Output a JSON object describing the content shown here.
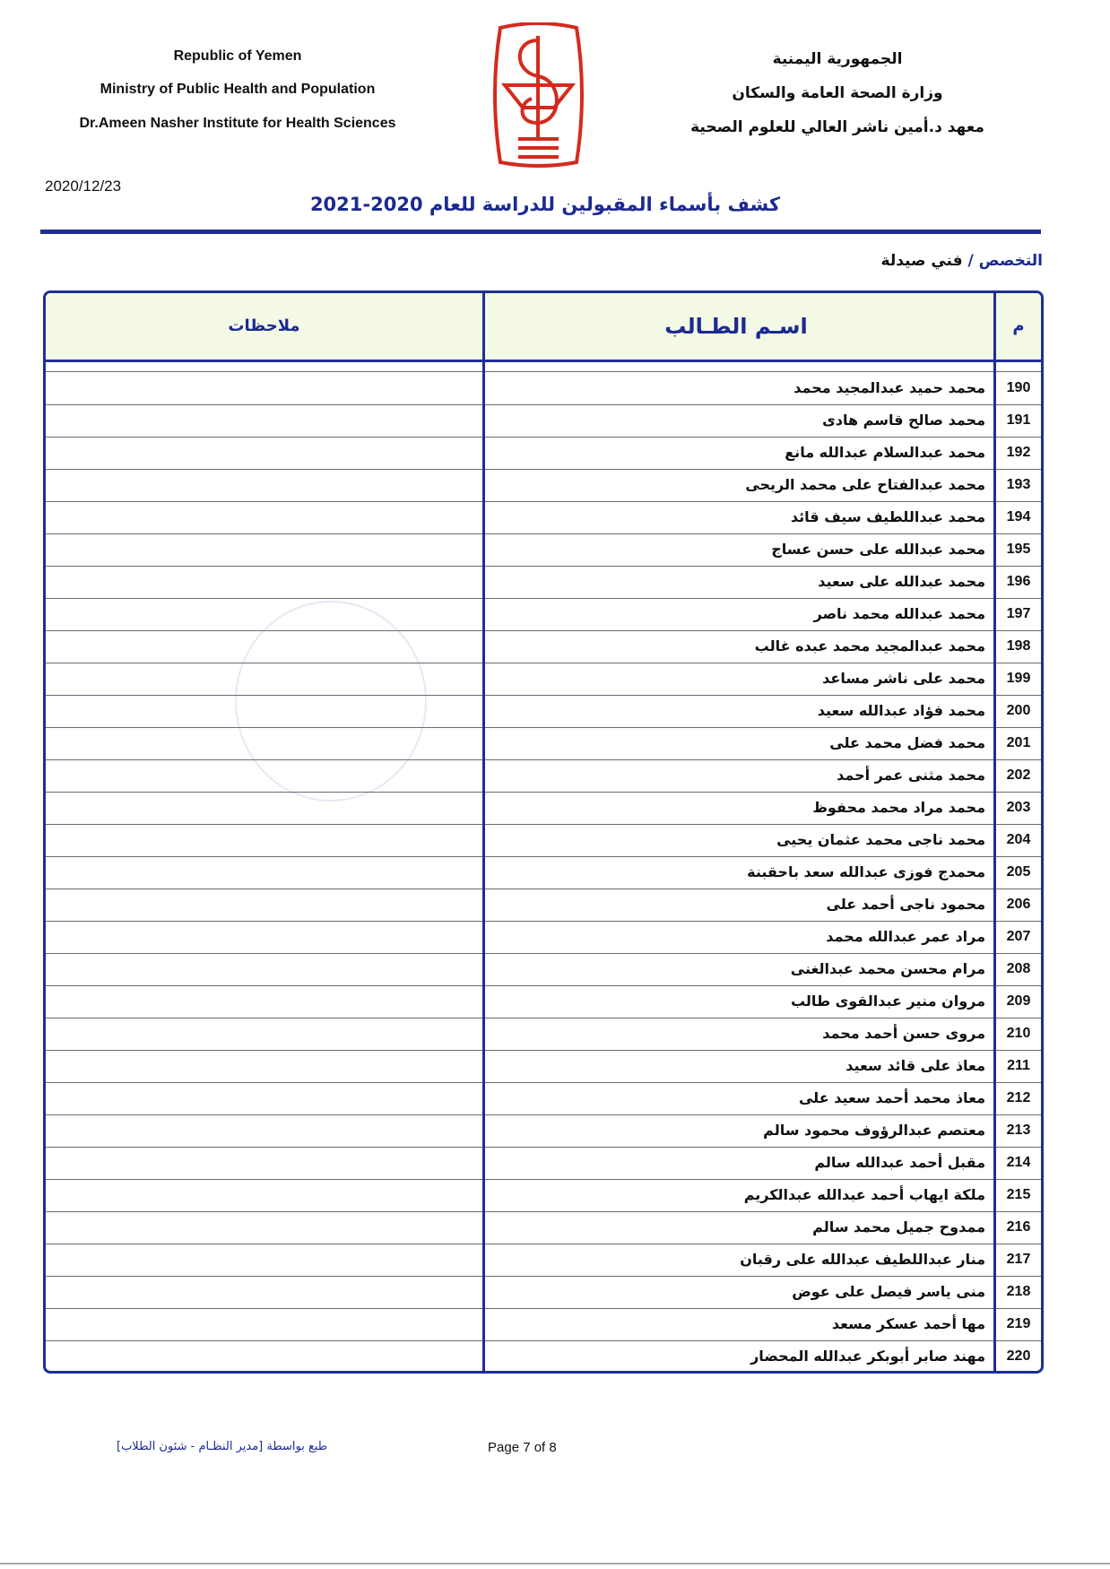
{
  "header": {
    "english": [
      "Republic of Yemen",
      "Ministry of Public Health and Population",
      "Dr.Ameen Nasher Institute for Health Sciences"
    ],
    "arabic": [
      "الجمهورية اليمنية",
      "وزارة الصحة العامة والسكان",
      "معهد د.أمين ناشر العالي للعلوم الصحية"
    ],
    "logo_color": "#d42a1e"
  },
  "date": "2020/12/23",
  "title": "كشف بأسماء المقبولين للدراسة للعام 2020-2021",
  "specialty": {
    "label": "التخصص /",
    "value": "فني صيدلة"
  },
  "table": {
    "columns": {
      "number": "م",
      "name": "اسـم الطـالب",
      "notes": "ملاحظات"
    },
    "rows": [
      {
        "n": "190",
        "name": "محمد حميد عبدالمجيد محمد"
      },
      {
        "n": "191",
        "name": "محمد صالح قاسم هادى"
      },
      {
        "n": "192",
        "name": "محمد عبدالسلام عبدالله مانع"
      },
      {
        "n": "193",
        "name": "محمد عبدالفتاح على محمد الريحى"
      },
      {
        "n": "194",
        "name": "محمد عبداللطيف سيف قائد"
      },
      {
        "n": "195",
        "name": "محمد عبدالله على حسن عساج"
      },
      {
        "n": "196",
        "name": "محمد عبدالله على سعيد"
      },
      {
        "n": "197",
        "name": "محمد عبدالله محمد ناصر"
      },
      {
        "n": "198",
        "name": "محمد عبدالمجيد محمد عبده غالب"
      },
      {
        "n": "199",
        "name": "محمد على ناشر مساعد"
      },
      {
        "n": "200",
        "name": "محمد فؤاد عبدالله سعيد"
      },
      {
        "n": "201",
        "name": "محمد فضل محمد على"
      },
      {
        "n": "202",
        "name": "محمد مثنى عمر أحمد"
      },
      {
        "n": "203",
        "name": "محمد مراد محمد محفوظ"
      },
      {
        "n": "204",
        "name": "محمد ناجى محمد عثمان يحيى"
      },
      {
        "n": "205",
        "name": "محمدج فوزى عبدالله سعد باحقبنة"
      },
      {
        "n": "206",
        "name": "محمود ناجى أحمد على"
      },
      {
        "n": "207",
        "name": "مراد عمر عبدالله محمد"
      },
      {
        "n": "208",
        "name": "مرام محسن محمد عبدالغنى"
      },
      {
        "n": "209",
        "name": "مروان منير عبدالقوى طالب"
      },
      {
        "n": "210",
        "name": "مروى حسن أحمد محمد"
      },
      {
        "n": "211",
        "name": "معاذ على قائد سعيد"
      },
      {
        "n": "212",
        "name": "معاذ محمد أحمد سعيد على"
      },
      {
        "n": "213",
        "name": "معتصم عبدالرؤوف محمود سالم"
      },
      {
        "n": "214",
        "name": "مقبل أحمد عبدالله سالم"
      },
      {
        "n": "215",
        "name": "ملكة ايهاب أحمد عبدالله عبدالكريم"
      },
      {
        "n": "216",
        "name": "ممدوح جميل محمد سالم"
      },
      {
        "n": "217",
        "name": "منار عبداللطيف عبدالله على رقبان"
      },
      {
        "n": "218",
        "name": "منى ياسر فيصل على عوض"
      },
      {
        "n": "219",
        "name": "مها أحمد عسكر مسعد"
      },
      {
        "n": "220",
        "name": "مهند صابر أبوبكر عبدالله المحضار"
      }
    ]
  },
  "footer": {
    "printed_by": "طبع بواسطة [مدير النظـام - شئون الطلاب]",
    "page": "Page 7 of 8"
  }
}
